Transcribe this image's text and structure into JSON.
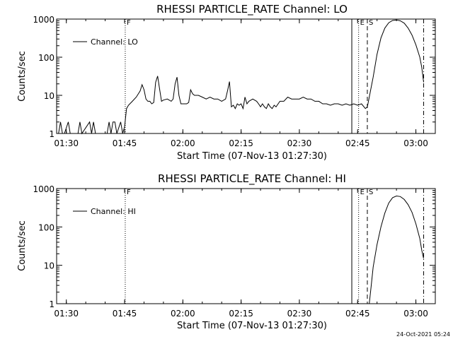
{
  "chart_data": [
    {
      "type": "line",
      "title": "RHESSI PARTICLE_RATE Channel: LO",
      "xlabel": "Start Time (07-Nov-13 01:27:30)",
      "ylabel": "Counts/sec",
      "yscale": "log",
      "ylim": [
        1,
        1000
      ],
      "xlim": [
        "01:27:30",
        "03:05:00"
      ],
      "x_ticks": [
        "01:30",
        "01:45",
        "02:00",
        "02:15",
        "02:30",
        "02:45",
        "03:00"
      ],
      "y_ticks": [
        "1",
        "10",
        "100",
        "1000"
      ],
      "grid": false,
      "legend": {
        "position": "top-left",
        "entries": [
          "Channel: LO"
        ]
      },
      "markers": [
        {
          "time": "01:45:10",
          "style": "dotted",
          "label": "F"
        },
        {
          "time": "02:43:30",
          "style": "solid",
          "label": ""
        },
        {
          "time": "02:45:15",
          "style": "dotted",
          "label": "E"
        },
        {
          "time": "02:47:30",
          "style": "dashed",
          "label": "S"
        },
        {
          "time": "03:02:00",
          "style": "dashdot",
          "label": ""
        }
      ],
      "series": [
        {
          "name": "Channel: LO",
          "points": [
            [
              "01:27:30",
              1
            ],
            [
              "01:28:00",
              1
            ],
            [
              "01:28:30",
              2
            ],
            [
              "01:29:00",
              1
            ],
            [
              "01:29:30",
              1
            ],
            [
              "01:30:30",
              2
            ],
            [
              "01:31:00",
              1
            ],
            [
              "01:33:00",
              1
            ],
            [
              "01:33:30",
              2
            ],
            [
              "01:34:00",
              1
            ],
            [
              "01:36:00",
              2
            ],
            [
              "01:36:30",
              1
            ],
            [
              "01:37:00",
              2
            ],
            [
              "01:37:30",
              1
            ],
            [
              "01:40:30",
              1
            ],
            [
              "01:41:00",
              2
            ],
            [
              "01:41:30",
              1
            ],
            [
              "01:42:00",
              2
            ],
            [
              "01:42:30",
              2
            ],
            [
              "01:43:00",
              1
            ],
            [
              "01:44:00",
              2
            ],
            [
              "01:44:30",
              1
            ],
            [
              "01:45:00",
              1.5
            ],
            [
              "01:45:30",
              4.5
            ],
            [
              "01:46:00",
              5.5
            ],
            [
              "01:47:00",
              7
            ],
            [
              "01:48:00",
              9
            ],
            [
              "01:49:00",
              13
            ],
            [
              "01:49:30",
              19
            ],
            [
              "01:50:00",
              14
            ],
            [
              "01:50:30",
              8
            ],
            [
              "01:51:00",
              7
            ],
            [
              "01:51:30",
              7
            ],
            [
              "01:52:00",
              6
            ],
            [
              "01:52:30",
              6.5
            ],
            [
              "01:53:00",
              22
            ],
            [
              "01:53:30",
              32
            ],
            [
              "01:54:00",
              15
            ],
            [
              "01:54:30",
              7
            ],
            [
              "01:55:00",
              7.5
            ],
            [
              "01:56:00",
              8
            ],
            [
              "01:57:00",
              7
            ],
            [
              "01:57:30",
              8
            ],
            [
              "01:58:00",
              20
            ],
            [
              "01:58:30",
              30
            ],
            [
              "01:59:00",
              10
            ],
            [
              "01:59:30",
              6
            ],
            [
              "02:00:00",
              6
            ],
            [
              "02:01:00",
              6
            ],
            [
              "02:01:30",
              6.5
            ],
            [
              "02:02:00",
              14
            ],
            [
              "02:02:30",
              11
            ],
            [
              "02:03:00",
              10
            ],
            [
              "02:04:00",
              10
            ],
            [
              "02:05:00",
              9
            ],
            [
              "02:06:00",
              8
            ],
            [
              "02:07:00",
              9
            ],
            [
              "02:08:00",
              8
            ],
            [
              "02:09:00",
              8
            ],
            [
              "02:10:00",
              7
            ],
            [
              "02:11:00",
              8
            ],
            [
              "02:11:30",
              13
            ],
            [
              "02:12:00",
              23
            ],
            [
              "02:12:30",
              5
            ],
            [
              "02:13:00",
              5.5
            ],
            [
              "02:13:30",
              4.5
            ],
            [
              "02:14:00",
              6
            ],
            [
              "02:14:30",
              5.5
            ],
            [
              "02:15:00",
              6
            ],
            [
              "02:15:30",
              4.5
            ],
            [
              "02:16:00",
              9
            ],
            [
              "02:16:30",
              6
            ],
            [
              "02:17:00",
              7
            ],
            [
              "02:18:00",
              8
            ],
            [
              "02:19:00",
              7
            ],
            [
              "02:19:30",
              6
            ],
            [
              "02:20:00",
              5
            ],
            [
              "02:20:30",
              6
            ],
            [
              "02:21:00",
              5
            ],
            [
              "02:21:30",
              4.5
            ],
            [
              "02:22:00",
              6
            ],
            [
              "02:22:30",
              5
            ],
            [
              "02:23:00",
              4.5
            ],
            [
              "02:23:30",
              5.5
            ],
            [
              "02:24:00",
              5
            ],
            [
              "02:25:00",
              7
            ],
            [
              "02:26:00",
              7
            ],
            [
              "02:27:00",
              9
            ],
            [
              "02:28:00",
              8
            ],
            [
              "02:29:00",
              8
            ],
            [
              "02:30:00",
              8
            ],
            [
              "02:31:00",
              9
            ],
            [
              "02:32:00",
              8
            ],
            [
              "02:33:00",
              8
            ],
            [
              "02:34:00",
              7
            ],
            [
              "02:35:00",
              7
            ],
            [
              "02:36:00",
              6
            ],
            [
              "02:37:00",
              6
            ],
            [
              "02:38:00",
              5.5
            ],
            [
              "02:39:00",
              6
            ],
            [
              "02:40:00",
              6
            ],
            [
              "02:41:00",
              5.5
            ],
            [
              "02:42:00",
              6
            ],
            [
              "02:43:00",
              5.5
            ],
            [
              "02:44:00",
              6
            ],
            [
              "02:45:00",
              5.5
            ],
            [
              "02:46:00",
              6
            ],
            [
              "02:47:00",
              4.5
            ],
            [
              "02:47:30",
              5
            ],
            [
              "02:48:00",
              9
            ],
            [
              "02:49:00",
              30
            ],
            [
              "02:50:00",
              120
            ],
            [
              "02:51:00",
              320
            ],
            [
              "02:52:00",
              580
            ],
            [
              "02:53:00",
              800
            ],
            [
              "02:54:00",
              920
            ],
            [
              "02:55:00",
              950
            ],
            [
              "02:56:00",
              900
            ],
            [
              "02:57:00",
              780
            ],
            [
              "02:58:00",
              580
            ],
            [
              "02:59:00",
              380
            ],
            [
              "03:00:00",
              210
            ],
            [
              "03:01:00",
              100
            ],
            [
              "03:01:30",
              55
            ],
            [
              "03:02:00",
              22
            ]
          ]
        }
      ]
    },
    {
      "type": "line",
      "title": "RHESSI PARTICLE_RATE Channel: HI",
      "xlabel": "Start Time (07-Nov-13 01:27:30)",
      "ylabel": "Counts/sec",
      "yscale": "log",
      "ylim": [
        1,
        1000
      ],
      "xlim": [
        "01:27:30",
        "03:05:00"
      ],
      "x_ticks": [
        "01:30",
        "01:45",
        "02:00",
        "02:15",
        "02:30",
        "02:45",
        "03:00"
      ],
      "y_ticks": [
        "1",
        "10",
        "100",
        "1000"
      ],
      "grid": false,
      "legend": {
        "position": "top-left",
        "entries": [
          "Channel: HI"
        ]
      },
      "markers": [
        {
          "time": "01:45:10",
          "style": "dotted",
          "label": "F"
        },
        {
          "time": "02:43:30",
          "style": "solid",
          "label": ""
        },
        {
          "time": "02:45:15",
          "style": "dotted",
          "label": "E"
        },
        {
          "time": "02:47:30",
          "style": "dashed",
          "label": "S"
        },
        {
          "time": "03:02:00",
          "style": "dashdot",
          "label": ""
        }
      ],
      "series": [
        {
          "name": "Channel: HI",
          "points": [
            [
              "02:48:00",
              1
            ],
            [
              "02:48:30",
              3
            ],
            [
              "02:49:00",
              9
            ],
            [
              "02:50:00",
              35
            ],
            [
              "02:51:00",
              100
            ],
            [
              "02:52:00",
              230
            ],
            [
              "02:53:00",
              420
            ],
            [
              "02:54:00",
              580
            ],
            [
              "02:55:00",
              640
            ],
            [
              "02:56:00",
              620
            ],
            [
              "02:57:00",
              520
            ],
            [
              "02:58:00",
              380
            ],
            [
              "02:59:00",
              240
            ],
            [
              "03:00:00",
              120
            ],
            [
              "03:01:00",
              50
            ],
            [
              "03:01:30",
              25
            ],
            [
              "03:02:00",
              15
            ]
          ]
        }
      ]
    }
  ],
  "footer": {
    "timestamp": "24-Oct-2021 05:24"
  }
}
